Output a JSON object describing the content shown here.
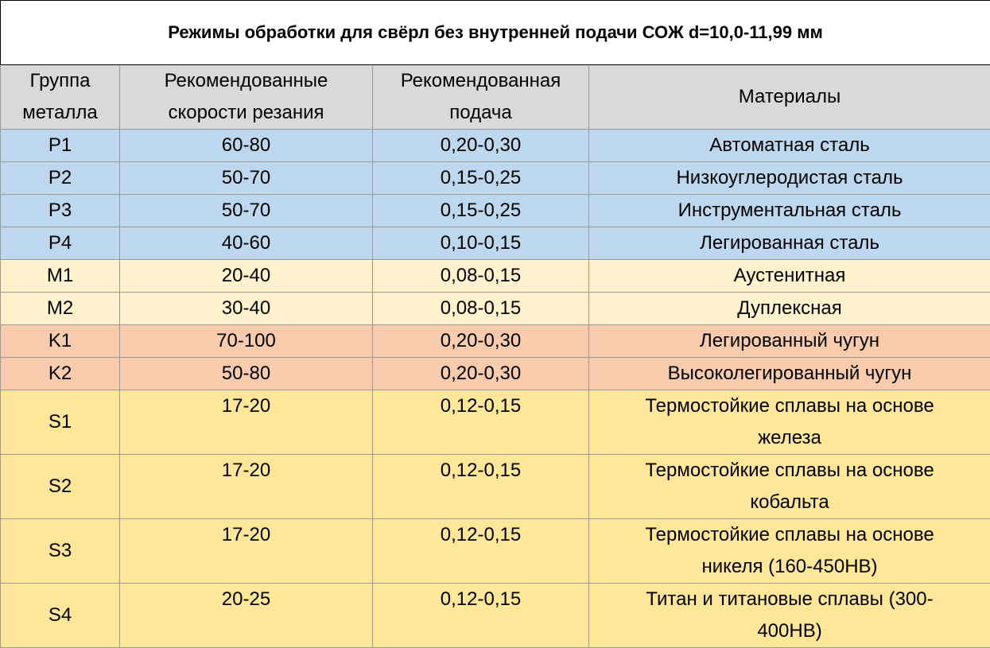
{
  "title": "Режимы обработки для свёрл без внутренней подачи СОЖ d=10,0-11,99 мм",
  "headers": {
    "group": [
      "Группа",
      "металла"
    ],
    "speed": [
      "Рекомендованные",
      "скорости резания"
    ],
    "feed": [
      "Рекомендованная",
      "подача"
    ],
    "materials": "Материалы"
  },
  "colors": {
    "header": "#d9d9d9",
    "P": "#bdd7ee",
    "M": "#fff2cc",
    "K": "#f8cbad",
    "S": "#ffe699"
  },
  "rows": [
    {
      "group": "P1",
      "speed": "60-80",
      "feed": "0,20-0,30",
      "material": [
        "Автоматная сталь"
      ]
    },
    {
      "group": "P2",
      "speed": "50-70",
      "feed": "0,15-0,25",
      "material": [
        "Низкоуглеродистая сталь"
      ]
    },
    {
      "group": "P3",
      "speed": "50-70",
      "feed": "0,15-0,25",
      "material": [
        "Инструментальная сталь"
      ]
    },
    {
      "group": "P4",
      "speed": "40-60",
      "feed": "0,10-0,15",
      "material": [
        "Легированная сталь"
      ]
    },
    {
      "group": "M1",
      "speed": "20-40",
      "feed": "0,08-0,15",
      "material": [
        "Аустенитная"
      ]
    },
    {
      "group": "M2",
      "speed": "30-40",
      "feed": "0,08-0,15",
      "material": [
        "Дуплексная"
      ]
    },
    {
      "group": "K1",
      "speed": "70-100",
      "feed": "0,20-0,30",
      "material": [
        "Легированный чугун"
      ]
    },
    {
      "group": "K2",
      "speed": "50-80",
      "feed": "0,20-0,30",
      "material": [
        "Высоколегированный чугун"
      ]
    },
    {
      "group": "S1",
      "speed": "17-20",
      "feed": "0,12-0,15",
      "material": [
        "Термостойкие сплавы на основе",
        "железа"
      ]
    },
    {
      "group": "S2",
      "speed": "17-20",
      "feed": "0,12-0,15",
      "material": [
        "Термостойкие сплавы на основе",
        "кобальта"
      ]
    },
    {
      "group": "S3",
      "speed": "17-20",
      "feed": "0,12-0,15",
      "material": [
        "Термостойкие сплавы на основе",
        "никеля (160-450HB)"
      ]
    },
    {
      "group": "S4",
      "speed": "20-25",
      "feed": "0,12-0,15",
      "material": [
        "Титан и титановые сплавы (300-",
        "400HB)"
      ]
    }
  ]
}
